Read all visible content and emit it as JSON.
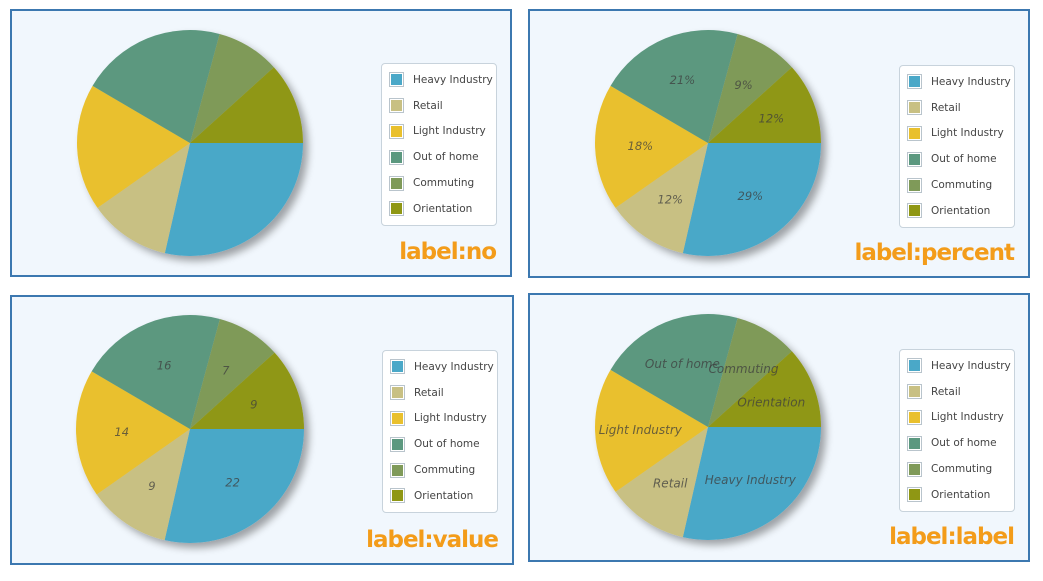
{
  "chart_data": [
    {
      "type": "pie",
      "title": "label:no",
      "label_mode": "no",
      "categories": [
        "Heavy Industry",
        "Retail",
        "Light Industry",
        "Out of home",
        "Commuting",
        "Orientation"
      ],
      "values": [
        22,
        9,
        14,
        16,
        7,
        9
      ],
      "percents": [
        "29%",
        "12%",
        "18%",
        "21%",
        "9%",
        "12%"
      ],
      "colors": [
        "#4aa8c8",
        "#c8c083",
        "#e9c02d",
        "#5b987f",
        "#7f9a59",
        "#8f9714"
      ],
      "legend_position": "right"
    },
    {
      "type": "pie",
      "title": "label:percent",
      "label_mode": "percent",
      "categories": [
        "Heavy Industry",
        "Retail",
        "Light Industry",
        "Out of home",
        "Commuting",
        "Orientation"
      ],
      "values": [
        22,
        9,
        14,
        16,
        7,
        9
      ],
      "percents": [
        "29%",
        "12%",
        "18%",
        "21%",
        "9%",
        "12%"
      ],
      "colors": [
        "#4aa8c8",
        "#c8c083",
        "#e9c02d",
        "#5b987f",
        "#7f9a59",
        "#8f9714"
      ],
      "legend_position": "right"
    },
    {
      "type": "pie",
      "title": "label:value",
      "label_mode": "value",
      "categories": [
        "Heavy Industry",
        "Retail",
        "Light Industry",
        "Out of home",
        "Commuting",
        "Orientation"
      ],
      "values": [
        22,
        9,
        14,
        16,
        7,
        9
      ],
      "percents": [
        "29%",
        "12%",
        "18%",
        "21%",
        "9%",
        "12%"
      ],
      "colors": [
        "#4aa8c8",
        "#c8c083",
        "#e9c02d",
        "#5b987f",
        "#7f9a59",
        "#8f9714"
      ],
      "legend_position": "right"
    },
    {
      "type": "pie",
      "title": "label:label",
      "label_mode": "label",
      "categories": [
        "Heavy Industry",
        "Retail",
        "Light Industry",
        "Out of home",
        "Commuting",
        "Orientation"
      ],
      "values": [
        22,
        9,
        14,
        16,
        7,
        9
      ],
      "percents": [
        "29%",
        "12%",
        "18%",
        "21%",
        "9%",
        "12%"
      ],
      "colors": [
        "#4aa8c8",
        "#c8c083",
        "#e9c02d",
        "#5b987f",
        "#7f9a59",
        "#8f9714"
      ],
      "legend_position": "right"
    }
  ]
}
